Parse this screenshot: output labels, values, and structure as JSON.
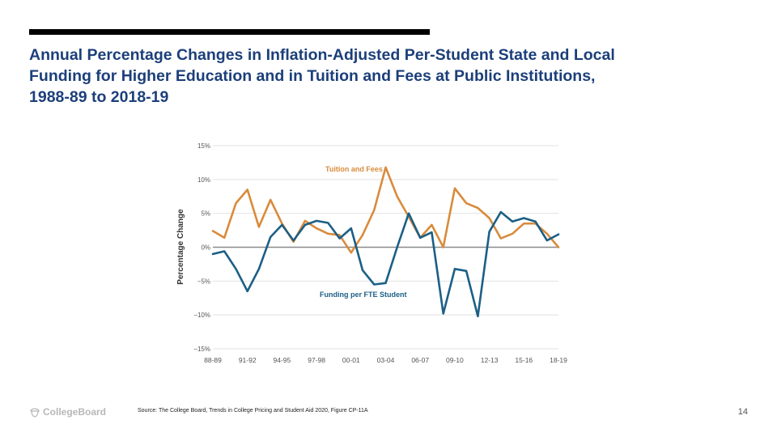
{
  "slide": {
    "title_lines": [
      "Annual Percentage Changes in Inflation-Adjusted Per-Student State and Local",
      "Funding for Higher Education and in Tuition and Fees at Public Institutions,",
      "1988-89 to 2018-19"
    ],
    "logo_text": "CollegeBoard",
    "logo_icon": "acorn-icon",
    "source": "Source: The College Board, Trends in College Pricing and Student Aid 2020, Figure CP-11A",
    "page_number": "14"
  },
  "chart_data": {
    "type": "line",
    "title": "",
    "xlabel": "",
    "ylabel": "Percentage Change",
    "ylim": [
      -15,
      15
    ],
    "yticks": [
      15,
      10,
      5,
      0,
      -5,
      -10,
      -15
    ],
    "ytick_labels": [
      "15%",
      "10%",
      "5%",
      "0%",
      "−5%",
      "−10%",
      "−15%"
    ],
    "grid": true,
    "zero_line": true,
    "categories": [
      "88-89",
      "89-90",
      "90-91",
      "91-92",
      "92-93",
      "93-94",
      "94-95",
      "95-96",
      "96-97",
      "97-98",
      "98-99",
      "99-00",
      "00-01",
      "01-02",
      "02-03",
      "03-04",
      "04-05",
      "05-06",
      "06-07",
      "07-08",
      "08-09",
      "09-10",
      "10-11",
      "11-12",
      "12-13",
      "13-14",
      "14-15",
      "15-16",
      "16-17",
      "17-18",
      "18-19"
    ],
    "xtick_labels": [
      "88-89",
      "91-92",
      "94-95",
      "97-98",
      "00-01",
      "03-04",
      "06-07",
      "09-10",
      "12-13",
      "15-16",
      "18-19"
    ],
    "series": [
      {
        "name": "Tuition and Fees",
        "color": "#d98b3c",
        "values": [
          2.4,
          1.4,
          6.5,
          8.5,
          3.0,
          7.0,
          3.5,
          0.8,
          3.9,
          2.8,
          2.0,
          1.8,
          -0.8,
          1.8,
          5.5,
          11.8,
          7.5,
          4.5,
          1.4,
          3.3,
          0.0,
          8.7,
          6.5,
          5.8,
          4.3,
          1.3,
          2.0,
          3.5,
          3.5,
          2.0,
          0.0
        ]
      },
      {
        "name": "Funding per FTE Student",
        "color": "#1b5f86",
        "values": [
          -1.0,
          -0.6,
          -3.2,
          -6.5,
          -3.2,
          1.5,
          3.3,
          1.0,
          3.3,
          3.9,
          3.6,
          1.3,
          2.8,
          -3.4,
          -5.5,
          -5.3,
          0.0,
          5.0,
          1.4,
          2.2,
          -9.8,
          -3.2,
          -3.5,
          -10.2,
          2.3,
          5.2,
          3.8,
          4.3,
          3.8,
          1.0,
          1.9
        ]
      }
    ],
    "annotations": [
      "Tuition and Fees",
      "Funding per FTE Student"
    ]
  }
}
